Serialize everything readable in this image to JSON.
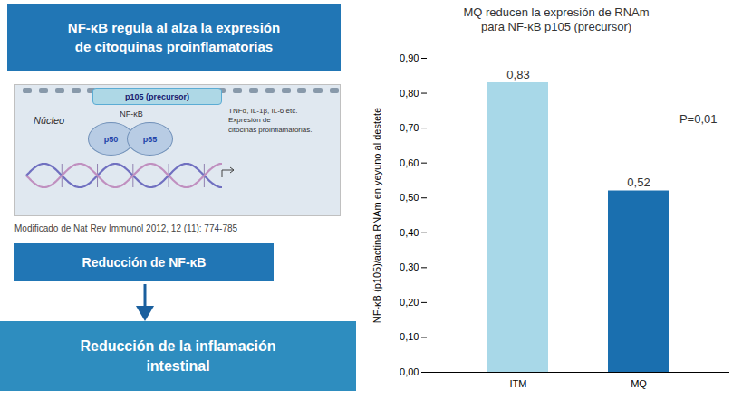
{
  "chart_data": {
    "type": "bar",
    "title": "MQ reducen la expresión de RNAm\npara NF-κB p105 (precursor)",
    "categories": [
      "ITM",
      "MQ"
    ],
    "values": [
      0.83,
      0.52
    ],
    "value_labels": [
      "0,83",
      "0,52"
    ],
    "colors": [
      "#a8d8e8",
      "#1a6faf"
    ],
    "ylabel": "NF-κB (p105)/actina RNAm en yeyuno al destete",
    "ylim": [
      0.0,
      0.9
    ],
    "yticks": [
      {
        "value": 0.0,
        "label": "0,00"
      },
      {
        "value": 0.1,
        "label": "0,10"
      },
      {
        "value": 0.2,
        "label": "0,20"
      },
      {
        "value": 0.3,
        "label": "0,30"
      },
      {
        "value": 0.4,
        "label": "0,40"
      },
      {
        "value": 0.5,
        "label": "0,50"
      },
      {
        "value": 0.6,
        "label": "0,60"
      },
      {
        "value": 0.7,
        "label": "0,70"
      },
      {
        "value": 0.8,
        "label": "0,80"
      },
      {
        "value": 0.9,
        "label": "0,90"
      }
    ],
    "data_labels": true,
    "grid": false,
    "annotations": [
      "P=0,01",
      "NF-κB regula al alza la expresión\nde citoquinas proinflamatorias",
      "Núcleo",
      "p105 (precursor)",
      "NF-κB",
      "p50",
      "p65",
      "TNFα, IL-1β, IL-6 etc.\nExpresión de\ncitocinas proinflamatorias.",
      "Modificado de Nat Rev Immunol 2012, 12 (11): 774-785",
      "Reducción de NF-κB",
      "Reducción de la inflamación\nintestinal"
    ]
  }
}
